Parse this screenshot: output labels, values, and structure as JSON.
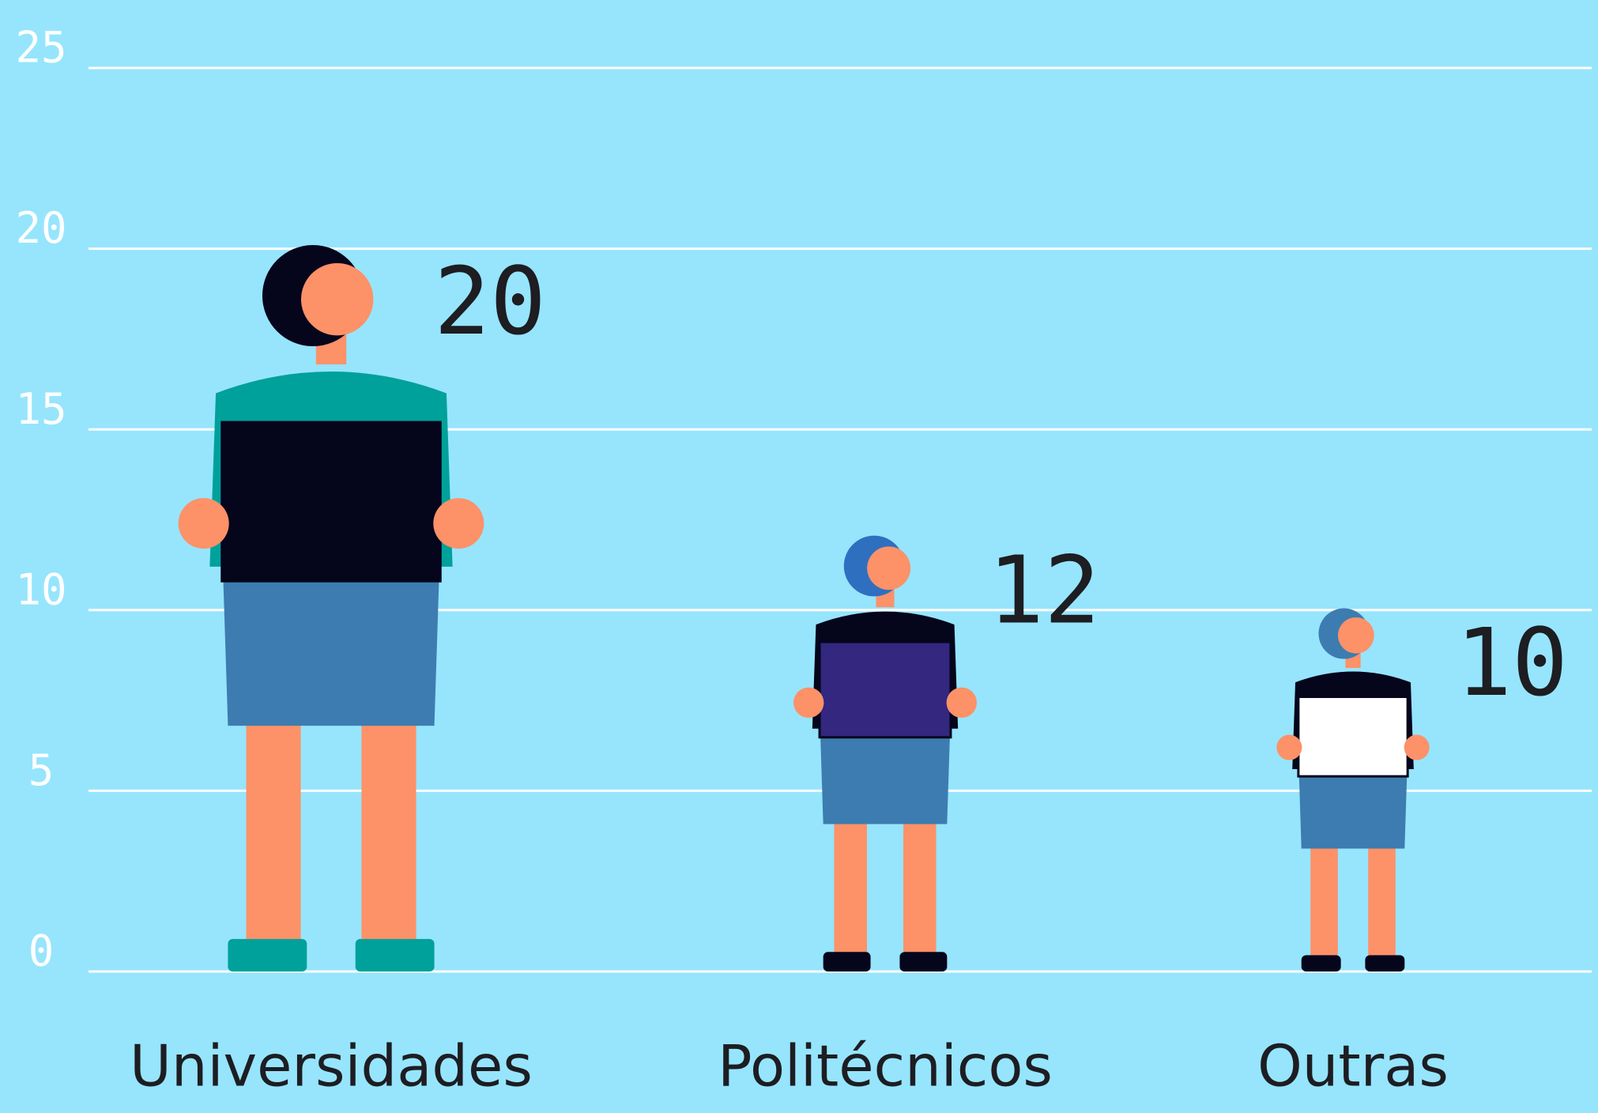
{
  "chart_data": {
    "type": "pictograph",
    "categories": [
      "Universidades",
      "Politécnicos",
      "Outras"
    ],
    "values": [
      20,
      12,
      10
    ],
    "ylim": [
      0,
      25
    ],
    "yticks": [
      0,
      5,
      10,
      15,
      20,
      25
    ],
    "grid": true
  }
}
